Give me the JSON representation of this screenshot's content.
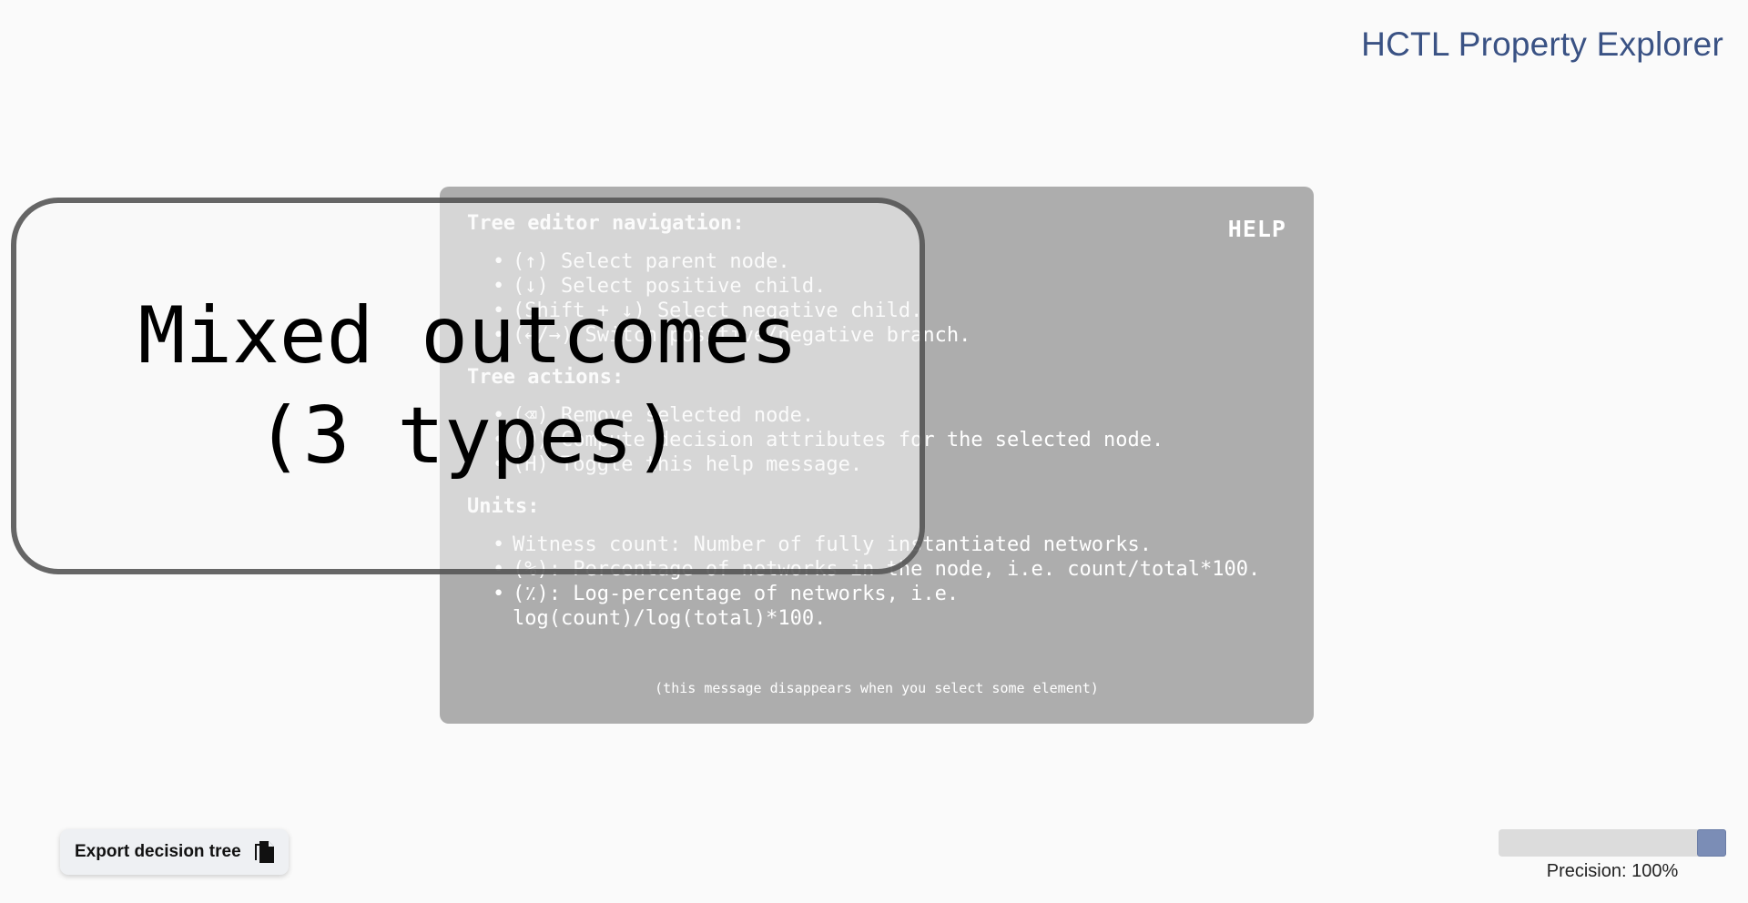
{
  "header": {
    "title": "HCTL Property Explorer"
  },
  "help": {
    "badge": "HELP",
    "sections": [
      {
        "title": "Tree editor navigation:",
        "items": [
          "(↑) Select parent node.",
          "(↓) Select positive child.",
          "(Shift + ↓) Select negative child.",
          "(←/→) Switch positive/negative branch."
        ]
      },
      {
        "title": "Tree actions:",
        "items": [
          "(⌫) Remove selected node.",
          "(D) Compute decision attributes for the selected node.",
          "(H) Toggle this help message."
        ]
      },
      {
        "title": "Units:",
        "items": [
          "Witness count: Number of fully instantiated networks.",
          "(%): Percentage of networks in the node, i.e. count/total*100.",
          "(٪): Log-percentage of networks, i.e. log(count)/log(total)*100."
        ]
      }
    ],
    "footer": "(this message disappears when you select some element)"
  },
  "tree_node": {
    "line1": "Mixed outcomes",
    "line2": "(3 types)"
  },
  "export": {
    "label": "Export decision tree",
    "icon": "copy-files-icon"
  },
  "precision": {
    "label": "Precision: 100%",
    "value": 1.0
  }
}
